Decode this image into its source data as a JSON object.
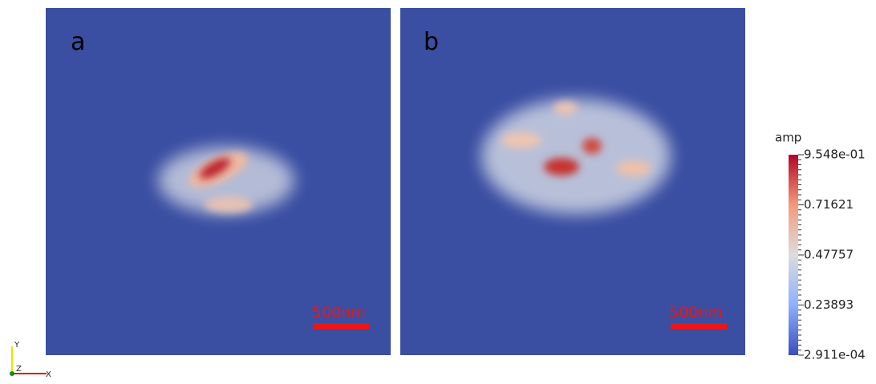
{
  "panels": [
    {
      "label": "a",
      "scale_bar": "500nm"
    },
    {
      "label": "b",
      "scale_bar": "500nm"
    }
  ],
  "colorbar": {
    "title": "amp",
    "labels": [
      "9.548e-01",
      "0.71621",
      "0.47757",
      "0.23893",
      "2.911e-04"
    ]
  },
  "axes": {
    "y": "Y",
    "z": "Z",
    "x": "X"
  }
}
